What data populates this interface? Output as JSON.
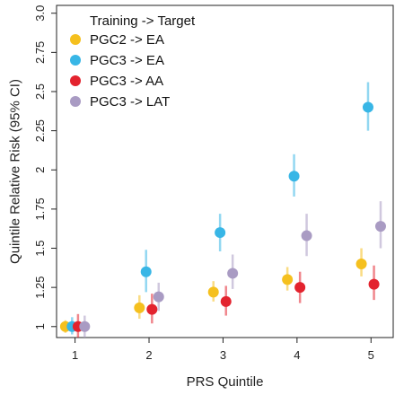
{
  "chart_data": {
    "type": "scatter",
    "xlabel": "PRS Quintile",
    "ylabel": "Quintile Relative Risk (95% CI)",
    "x": [
      1,
      2,
      3,
      4,
      5
    ],
    "xticks": [
      "1",
      "2",
      "3",
      "4",
      "5"
    ],
    "xlim": [
      0.75,
      5.3
    ],
    "ylim": [
      0.93,
      3.05
    ],
    "yticks": [
      "1",
      "1.25",
      "1.5",
      "1.75",
      "2",
      "2.25",
      "2.5",
      "2.75",
      "3.0"
    ],
    "legend": {
      "title": "Training -> Target",
      "placement": "top-left"
    },
    "series": [
      {
        "name": "PGC2 -> EA",
        "color": "#F5C01E",
        "values": [
          1.0,
          1.12,
          1.22,
          1.3,
          1.4
        ],
        "lower": [
          0.96,
          1.05,
          1.16,
          1.23,
          1.32
        ],
        "upper": [
          1.04,
          1.2,
          1.29,
          1.38,
          1.5
        ]
      },
      {
        "name": "PGC3 -> EA",
        "color": "#38B6E6",
        "values": [
          1.0,
          1.35,
          1.6,
          1.96,
          2.4
        ],
        "lower": [
          0.95,
          1.22,
          1.48,
          1.83,
          2.25
        ],
        "upper": [
          1.06,
          1.49,
          1.72,
          2.1,
          2.56
        ]
      },
      {
        "name": "PGC3 -> AA",
        "color": "#E3232E",
        "values": [
          1.0,
          1.11,
          1.16,
          1.25,
          1.27
        ],
        "lower": [
          0.93,
          1.02,
          1.07,
          1.15,
          1.17
        ],
        "upper": [
          1.08,
          1.21,
          1.26,
          1.35,
          1.39
        ]
      },
      {
        "name": "PGC3 -> LAT",
        "color": "#A99BC3",
        "values": [
          1.0,
          1.19,
          1.34,
          1.58,
          1.64
        ],
        "lower": [
          0.93,
          1.1,
          1.24,
          1.45,
          1.5
        ],
        "upper": [
          1.07,
          1.28,
          1.46,
          1.72,
          1.8
        ]
      }
    ]
  }
}
